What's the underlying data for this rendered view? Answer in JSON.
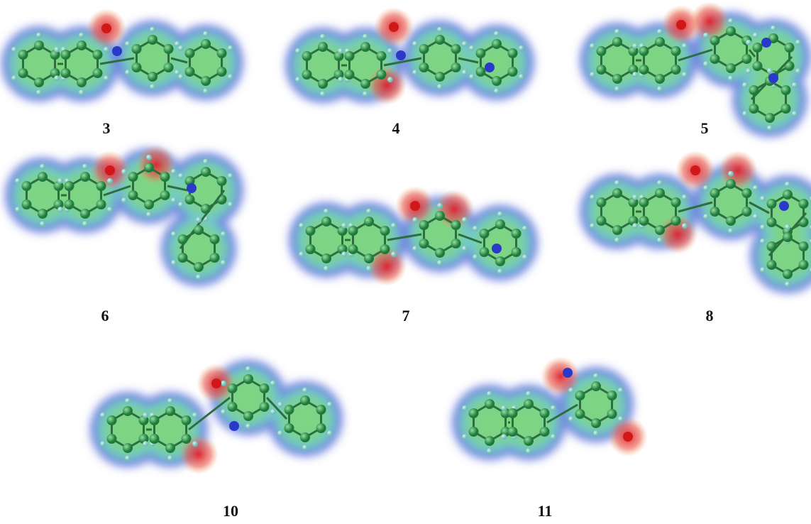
{
  "figures": [
    {
      "label": "3"
    },
    {
      "label": "4"
    },
    {
      "label": "5"
    },
    {
      "label": "6"
    },
    {
      "label": "7"
    },
    {
      "label": "8"
    },
    {
      "label": "10"
    },
    {
      "label": "11"
    }
  ]
}
